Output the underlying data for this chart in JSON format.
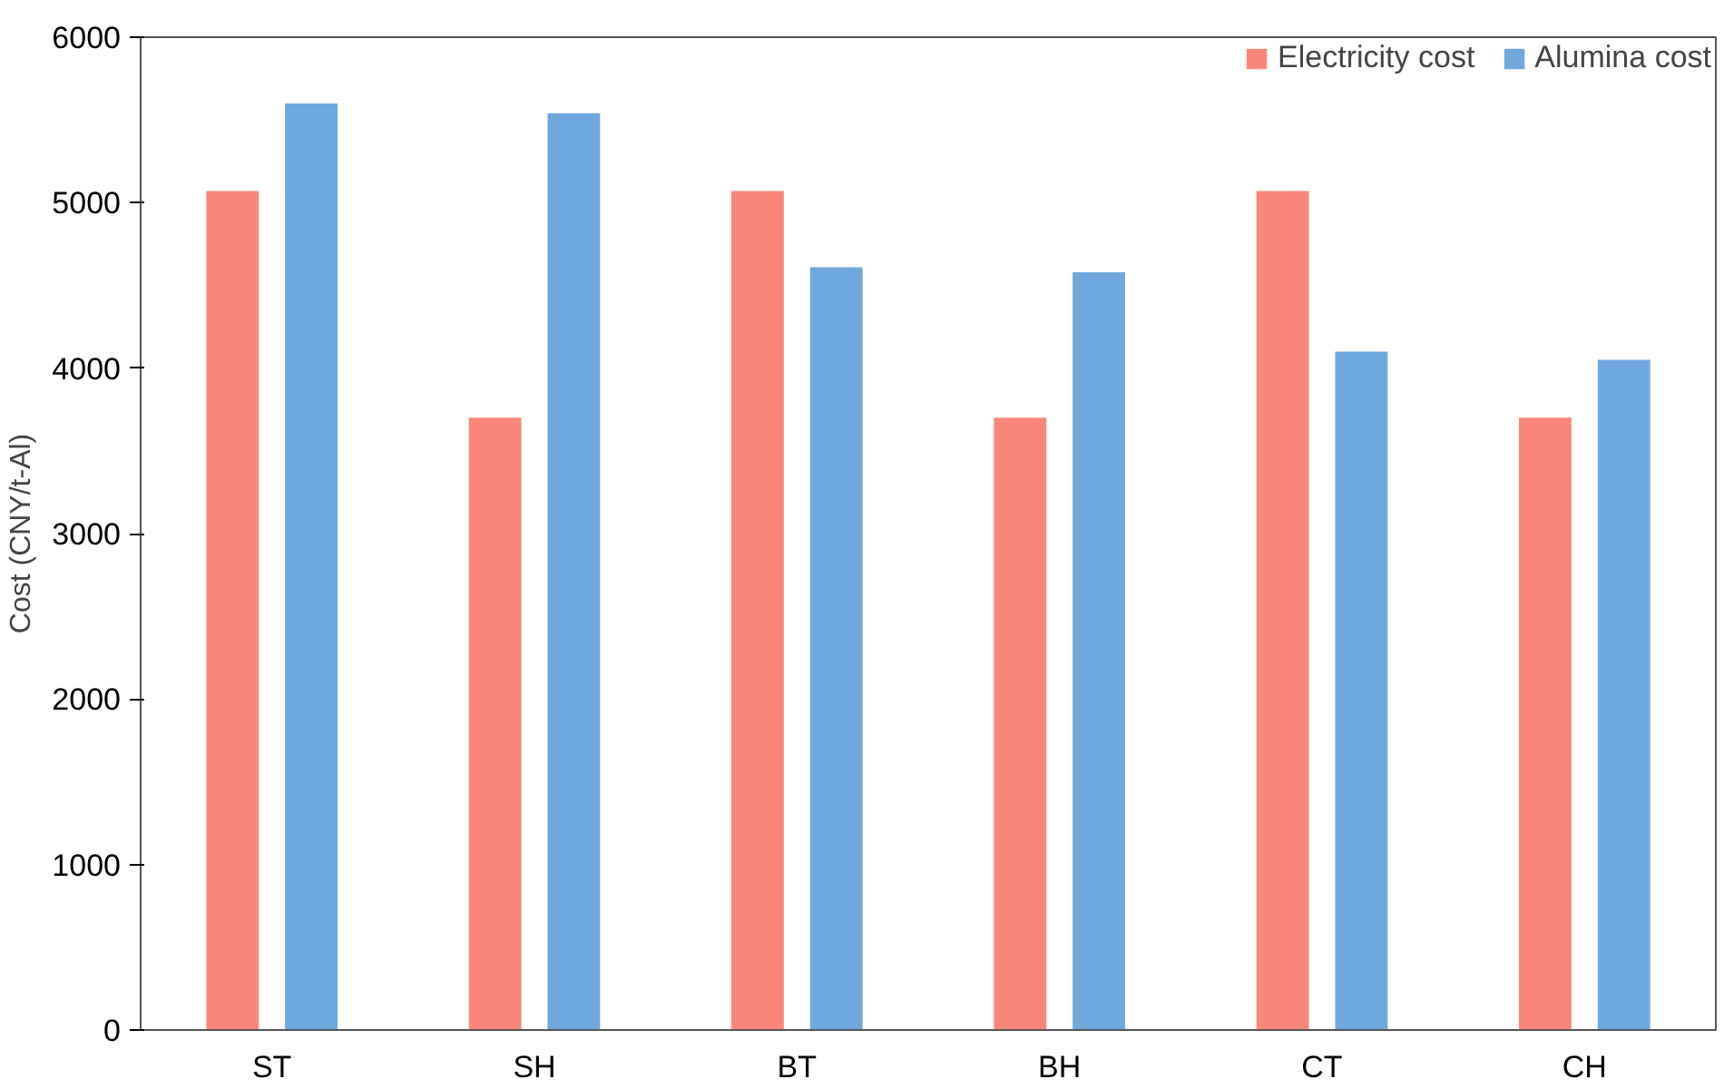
{
  "chart_data": {
    "type": "bar",
    "ylabel": "Cost (CNY/t-Al)",
    "categories": [
      "ST",
      "SH",
      "BT",
      "BH",
      "CT",
      "CH"
    ],
    "series": [
      {
        "name": "Electricity cost",
        "color": "#f8877a",
        "values": [
          5070,
          3700,
          5070,
          3700,
          5070,
          3700
        ]
      },
      {
        "name": "Alumina cost",
        "color": "#6fa8dc",
        "values": [
          5600,
          5540,
          4610,
          4580,
          4100,
          4050
        ]
      }
    ],
    "ylim": [
      0,
      6000
    ],
    "yticks": [
      0,
      1000,
      2000,
      3000,
      4000,
      5000,
      6000
    ],
    "grid": false,
    "legend": "top right"
  }
}
